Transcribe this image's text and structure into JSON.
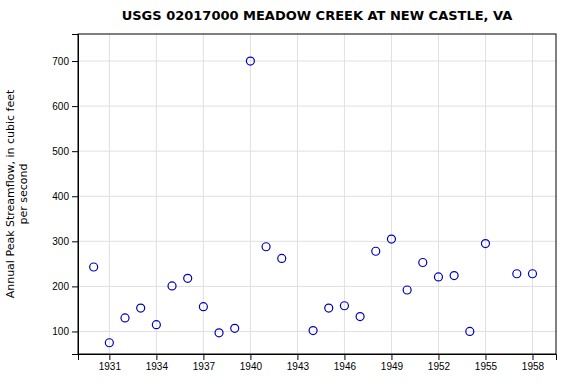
{
  "chart_data": {
    "type": "scatter",
    "title": "USGS 02017000 MEADOW CREEK AT NEW CASTLE, VA",
    "y_label": "Annual Peak Streamflow, in cubic feet\nper second",
    "x": [
      1930,
      1931,
      1932,
      1933,
      1934,
      1935,
      1936,
      1937,
      1938,
      1939,
      1940,
      1941,
      1942,
      1944,
      1945,
      1946,
      1947,
      1948,
      1949,
      1950,
      1951,
      1952,
      1953,
      1954,
      1955,
      1957,
      1958
    ],
    "values": [
      243,
      75,
      130,
      152,
      115,
      201,
      218,
      155,
      97,
      107,
      700,
      288,
      262,
      102,
      152,
      157,
      133,
      278,
      305,
      192,
      253,
      221,
      224,
      100,
      295,
      228,
      228
    ],
    "xlim": [
      1929.0,
      1959.5
    ],
    "ylim": [
      50,
      760
    ],
    "xticks": [
      1931,
      1934,
      1937,
      1940,
      1943,
      1946,
      1949,
      1952,
      1955,
      1958
    ],
    "yticks": [
      100,
      200,
      300,
      400,
      500,
      600,
      700
    ],
    "color": "#0000bb",
    "marker": "open-circle",
    "grid": true
  }
}
